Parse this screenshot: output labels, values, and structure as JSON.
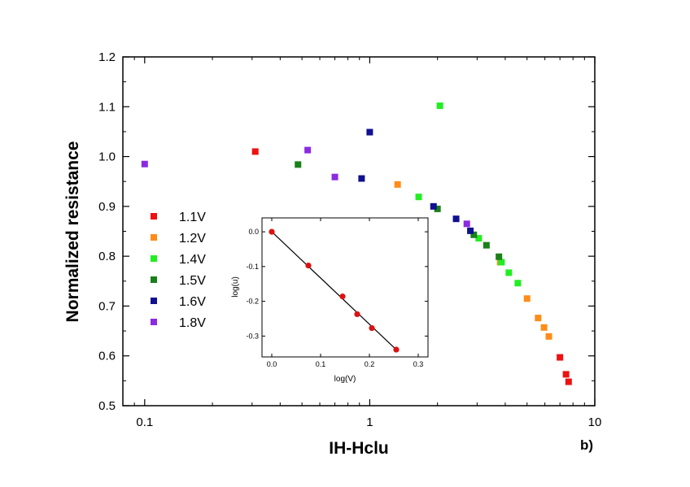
{
  "chart_data": [
    {
      "type": "scatter",
      "title": "",
      "xlabel": "IH-Hclu",
      "ylabel": "Normalized resistance",
      "xscale": "log",
      "xlim": [
        0.08,
        10
      ],
      "ylim": [
        0.5,
        1.2
      ],
      "x_ticks": [
        0.1,
        1,
        10
      ],
      "x_tick_labels": [
        "0.1",
        "1",
        "10"
      ],
      "y_ticks": [
        0.5,
        0.6,
        0.7,
        0.8,
        0.9,
        1.0,
        1.1,
        1.2
      ],
      "y_tick_labels": [
        "0.5",
        "0.6",
        "0.7",
        "0.8",
        "0.9",
        "1.0",
        "1.1",
        "1.2"
      ],
      "panel_label": "b)",
      "legend_position": "left",
      "series": [
        {
          "name": "1.1V",
          "color": "#ee1111",
          "points": [
            [
              0.31,
              1.01
            ],
            [
              7.0,
              0.597
            ],
            [
              7.45,
              0.563
            ],
            [
              7.65,
              0.548
            ]
          ]
        },
        {
          "name": "1.2V",
          "color": "#ff8c19",
          "points": [
            [
              1.33,
              0.944
            ],
            [
              3.8,
              0.788
            ],
            [
              5.0,
              0.715
            ],
            [
              5.6,
              0.676
            ],
            [
              5.95,
              0.657
            ],
            [
              6.25,
              0.639
            ]
          ]
        },
        {
          "name": "1.4V",
          "color": "#22ee22",
          "points": [
            [
              2.05,
              1.102
            ],
            [
              1.65,
              0.919
            ],
            [
              3.05,
              0.836
            ],
            [
              3.85,
              0.788
            ],
            [
              4.15,
              0.767
            ],
            [
              4.55,
              0.746
            ]
          ]
        },
        {
          "name": "1.5V",
          "color": "#1a801a",
          "points": [
            [
              0.48,
              0.984
            ],
            [
              2.0,
              0.895
            ],
            [
              2.9,
              0.843
            ],
            [
              3.3,
              0.822
            ],
            [
              3.75,
              0.799
            ]
          ]
        },
        {
          "name": "1.6V",
          "color": "#101090",
          "points": [
            [
              1.0,
              1.049
            ],
            [
              0.92,
              0.956
            ],
            [
              1.92,
              0.9
            ],
            [
              2.42,
              0.875
            ],
            [
              2.8,
              0.851
            ]
          ]
        },
        {
          "name": "1.8V",
          "color": "#8a2be2",
          "points": [
            [
              0.1,
              0.985
            ],
            [
              0.53,
              1.013
            ],
            [
              0.7,
              0.959
            ],
            [
              2.7,
              0.865
            ]
          ]
        }
      ]
    },
    {
      "type": "scatter",
      "title": "",
      "xlabel": "log(V)",
      "ylabel": "log(u)",
      "xlim": [
        -0.02,
        0.32
      ],
      "ylim": [
        -0.36,
        0.04
      ],
      "x_ticks": [
        0.0,
        0.1,
        0.2,
        0.3
      ],
      "x_tick_labels": [
        "0.0",
        "0.1",
        "0.2",
        "0.3"
      ],
      "y_ticks": [
        0.0,
        -0.1,
        -0.2,
        -0.3
      ],
      "y_tick_labels": [
        "0.0",
        "-0.1",
        "-0.2",
        "-0.3"
      ],
      "points_color": "#dd1111",
      "points": [
        [
          0.0,
          0.0
        ],
        [
          0.075,
          -0.097
        ],
        [
          0.145,
          -0.186
        ],
        [
          0.175,
          -0.237
        ],
        [
          0.205,
          -0.277
        ],
        [
          0.255,
          -0.339
        ]
      ],
      "fit_line": [
        [
          0.0,
          0.0
        ],
        [
          0.255,
          -0.339
        ]
      ]
    }
  ]
}
